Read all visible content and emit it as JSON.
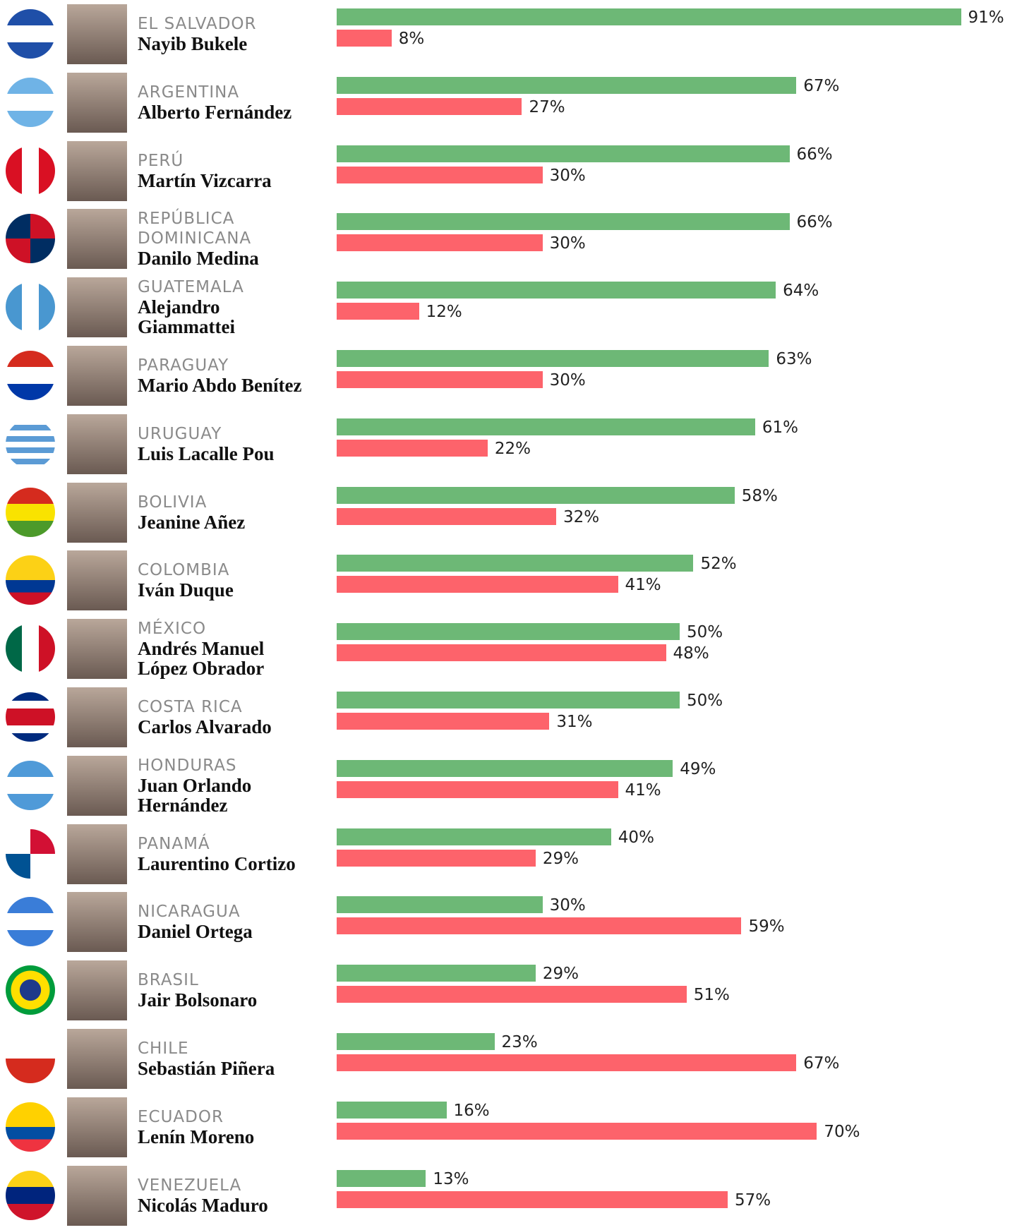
{
  "chart_data": {
    "type": "bar",
    "categories": [
      "EL SALVADOR",
      "ARGENTINA",
      "PERÚ",
      "REPÚBLICA DOMINICANA",
      "GUATEMALA",
      "PARAGUAY",
      "URUGUAY",
      "BOLIVIA",
      "COLOMBIA",
      "MÉXICO",
      "COSTA RICA",
      "HONDURAS",
      "PANAMÁ",
      "NICARAGUA",
      "BRASIL",
      "CHILE",
      "ECUADOR",
      "VENEZUELA"
    ],
    "leaders": [
      "Nayib Bukele",
      "Alberto Fernández",
      "Martín Vizcarra",
      "Danilo Medina",
      "Alejandro Giammattei",
      "Mario Abdo Benítez",
      "Luis Lacalle Pou",
      "Jeanine Añez",
      "Iván Duque",
      "Andrés Manuel López Obrador",
      "Carlos Alvarado",
      "Juan Orlando Hernández",
      "Laurentino Cortizo",
      "Daniel Ortega",
      "Jair Bolsonaro",
      "Sebastián Piñera",
      "Lenín Moreno",
      "Nicolás Maduro"
    ],
    "series": [
      {
        "color": "#6db876",
        "values": [
          91,
          67,
          66,
          66,
          64,
          63,
          61,
          58,
          52,
          50,
          50,
          49,
          40,
          30,
          29,
          23,
          16,
          13
        ],
        "value_labels": [
          "91%",
          "67%",
          "66%",
          "66%",
          "64%",
          "63%",
          "61%",
          "58%",
          "52%",
          "50%",
          "50%",
          "49%",
          "40%",
          "30%",
          "29%",
          "23%",
          "16%",
          "13%"
        ]
      },
      {
        "color": "#fd636b",
        "values": [
          8,
          27,
          30,
          30,
          12,
          30,
          22,
          32,
          41,
          48,
          31,
          41,
          29,
          59,
          51,
          67,
          70,
          57
        ],
        "value_labels": [
          "8%",
          "27%",
          "30%",
          "30%",
          "12%",
          "30%",
          "22%",
          "32%",
          "41%",
          "48%",
          "31%",
          "41%",
          "29%",
          "59%",
          "51%",
          "67%",
          "70%",
          "57%"
        ]
      }
    ]
  }
}
